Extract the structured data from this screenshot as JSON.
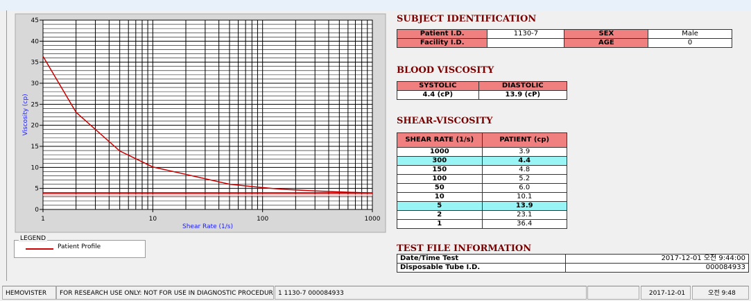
{
  "chart_data": {
    "type": "line",
    "xlabel": "Shear Rate (1/s)",
    "ylabel": "Viscosity (cp)",
    "log_x": true,
    "xlim": [
      1,
      1000
    ],
    "xticks": [
      1,
      10,
      100,
      1000
    ],
    "ylim": [
      0,
      45
    ],
    "yticks": [
      0,
      5,
      10,
      15,
      20,
      25,
      30,
      35,
      40,
      45
    ],
    "grid": true,
    "legend_title": "LEGEND",
    "series": [
      {
        "name": "Patient Profile",
        "color": "#cc0000",
        "x": [
          1,
          2,
          5,
          10,
          50,
          100,
          150,
          300,
          1000
        ],
        "values": [
          36.4,
          23.1,
          13.9,
          10.1,
          6.0,
          5.2,
          4.8,
          4.4,
          3.9
        ]
      },
      {
        "color": "#b00000",
        "x": [
          1,
          1000
        ],
        "values": [
          3.9,
          3.9
        ]
      }
    ]
  },
  "subject_identification": {
    "title": "SUBJECT IDENTIFICATION",
    "rows": [
      {
        "label": "Patient I.D.",
        "value": "1130-7",
        "label2": "SEX",
        "value2": "Male"
      },
      {
        "label": "Facility I.D.",
        "label2": "AGE",
        "value2": "0"
      }
    ]
  },
  "blood_viscosity": {
    "title": "BLOOD VISCOSITY",
    "headers": [
      "SYSTOLIC",
      "DIASTOLIC"
    ],
    "values": [
      "4.4 (cP)",
      "13.9 (cP)"
    ]
  },
  "shear_viscosity": {
    "title": "SHEAR-VISCOSITY",
    "headers": [
      "SHEAR RATE (1/s)",
      "PATIENT (cp)"
    ],
    "highlight_rows": [
      1,
      6
    ],
    "rows": [
      [
        "1000",
        "3.9"
      ],
      [
        "300",
        "4.4"
      ],
      [
        "150",
        "4.8"
      ],
      [
        "100",
        "5.2"
      ],
      [
        "50",
        "6.0"
      ],
      [
        "10",
        "10.1"
      ],
      [
        "5",
        "13.9"
      ],
      [
        "2",
        "23.1"
      ],
      [
        "1",
        "36.4"
      ]
    ]
  },
  "test_file": {
    "title": "TEST FILE INFORMATION",
    "rows": [
      [
        "Date/Time Test",
        "2017-12-01  오전 9:44:00"
      ],
      [
        "Disposable Tube I.D.",
        "000084933"
      ]
    ]
  },
  "status_bar": [
    "HEMOVISTER",
    "FOR RESEARCH USE ONLY: NOT FOR USE IN DIAGNOSTIC PROCEDURES",
    "1  1130-7  000084933",
    "2017-12-01",
    "오전 9:48"
  ]
}
